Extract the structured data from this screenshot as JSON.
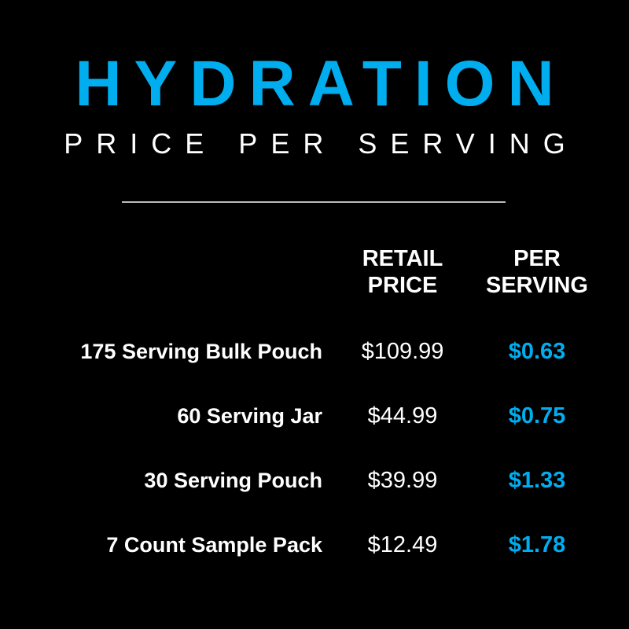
{
  "title": "HYDRATION",
  "subtitle": "PRICE PER SERVING",
  "colors": {
    "accent": "#00aeef",
    "background": "#000000",
    "text": "#ffffff"
  },
  "table": {
    "headers": {
      "retail_line1": "RETAIL",
      "retail_line2": "PRICE",
      "per_line1": "PER",
      "per_line2": "SERVING"
    },
    "rows": [
      {
        "label": "175 Serving Bulk Pouch",
        "retail": "$109.99",
        "per_serving": "$0.63"
      },
      {
        "label": "60 Serving Jar",
        "retail": "$44.99",
        "per_serving": "$0.75"
      },
      {
        "label": "30 Serving Pouch",
        "retail": "$39.99",
        "per_serving": "$1.33"
      },
      {
        "label": "7 Count Sample Pack",
        "retail": "$12.49",
        "per_serving": "$1.78"
      }
    ]
  }
}
